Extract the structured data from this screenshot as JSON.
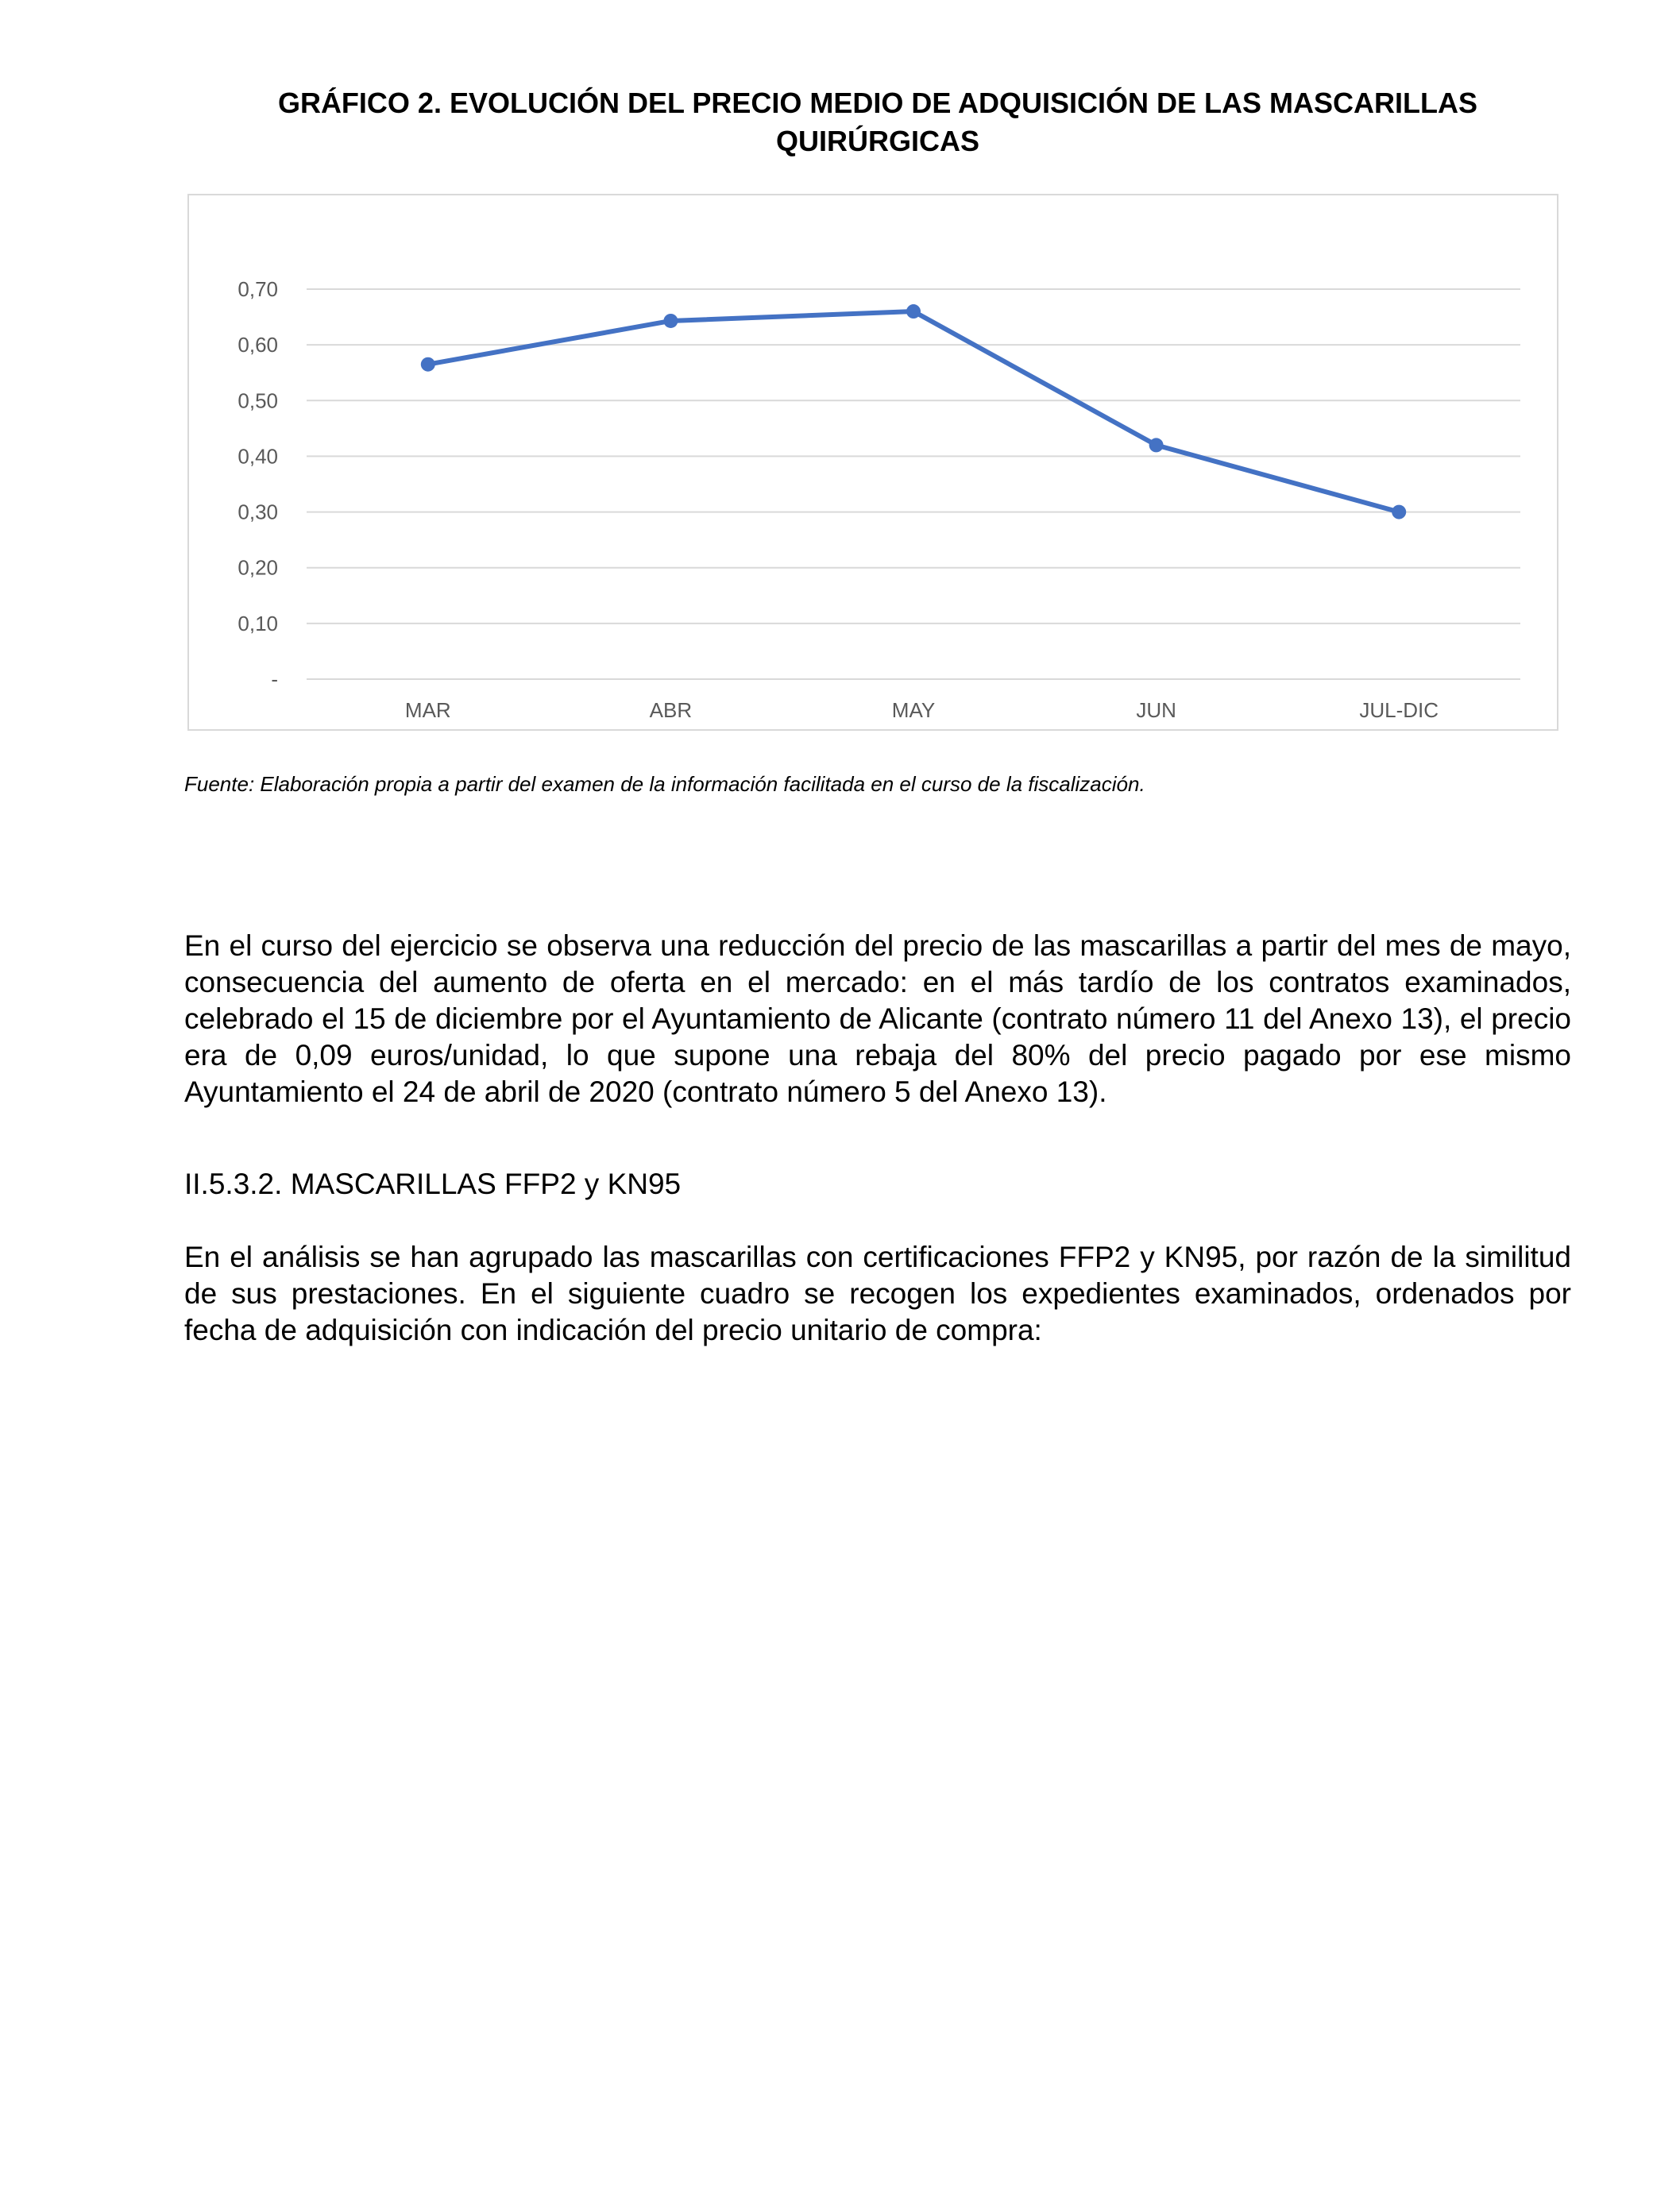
{
  "page": {
    "title": "GRÁFICO 2. EVOLUCIÓN DEL PRECIO MEDIO DE ADQUISICIÓN DE LAS MASCARILLAS QUIRÚRGICAS",
    "source_label": "Fuente:",
    "source_text": " Elaboración propia a partir del examen de la información facilitada en el curso de la fiscalización.",
    "paragraph1": "En el curso del ejercicio se observa una reducción del precio de las mascarillas a partir del mes de mayo, consecuencia del aumento de oferta en el mercado: en el más tardío de los contratos examinados, celebrado el 15 de diciembre por el Ayuntamiento de Alicante (contrato número 11 del Anexo 13), el precio era de 0,09 euros/unidad, lo que supone una rebaja del 80% del precio pagado por ese mismo Ayuntamiento el 24 de abril de 2020 (contrato número 5 del Anexo 13).",
    "section_heading": "II.5.3.2. MASCARILLAS FFP2 y KN95",
    "paragraph2": "En el análisis se han agrupado las mascarillas con certificaciones FFP2 y KN95, por razón de la similitud de sus prestaciones. En el siguiente cuadro se recogen los expedientes examinados, ordenados por fecha de adquisición con indicación del precio unitario de compra:"
  },
  "chart_data": {
    "type": "line",
    "title": "GRÁFICO 2. EVOLUCIÓN DEL PRECIO MEDIO DE ADQUISICIÓN DE LAS MASCARILLAS QUIRÚRGICAS",
    "categories": [
      "MAR",
      "ABR",
      "MAY",
      "JUN",
      "JUL-DIC"
    ],
    "series": [
      {
        "values": [
          0.565,
          0.643,
          0.66,
          0.42,
          0.3
        ]
      }
    ],
    "ylim": [
      0,
      0.7
    ],
    "yticks": [
      0,
      0.1,
      0.2,
      0.3,
      0.4,
      0.5,
      0.6,
      0.7
    ],
    "ytick_labels": [
      "-",
      "0,10",
      "0,20",
      "0,30",
      "0,40",
      "0,50",
      "0,60",
      "0,70"
    ],
    "grid": true,
    "legend": "none",
    "line_color": "#4472c4",
    "grid_color": "#d9d9d9",
    "tick_color": "#595959"
  }
}
